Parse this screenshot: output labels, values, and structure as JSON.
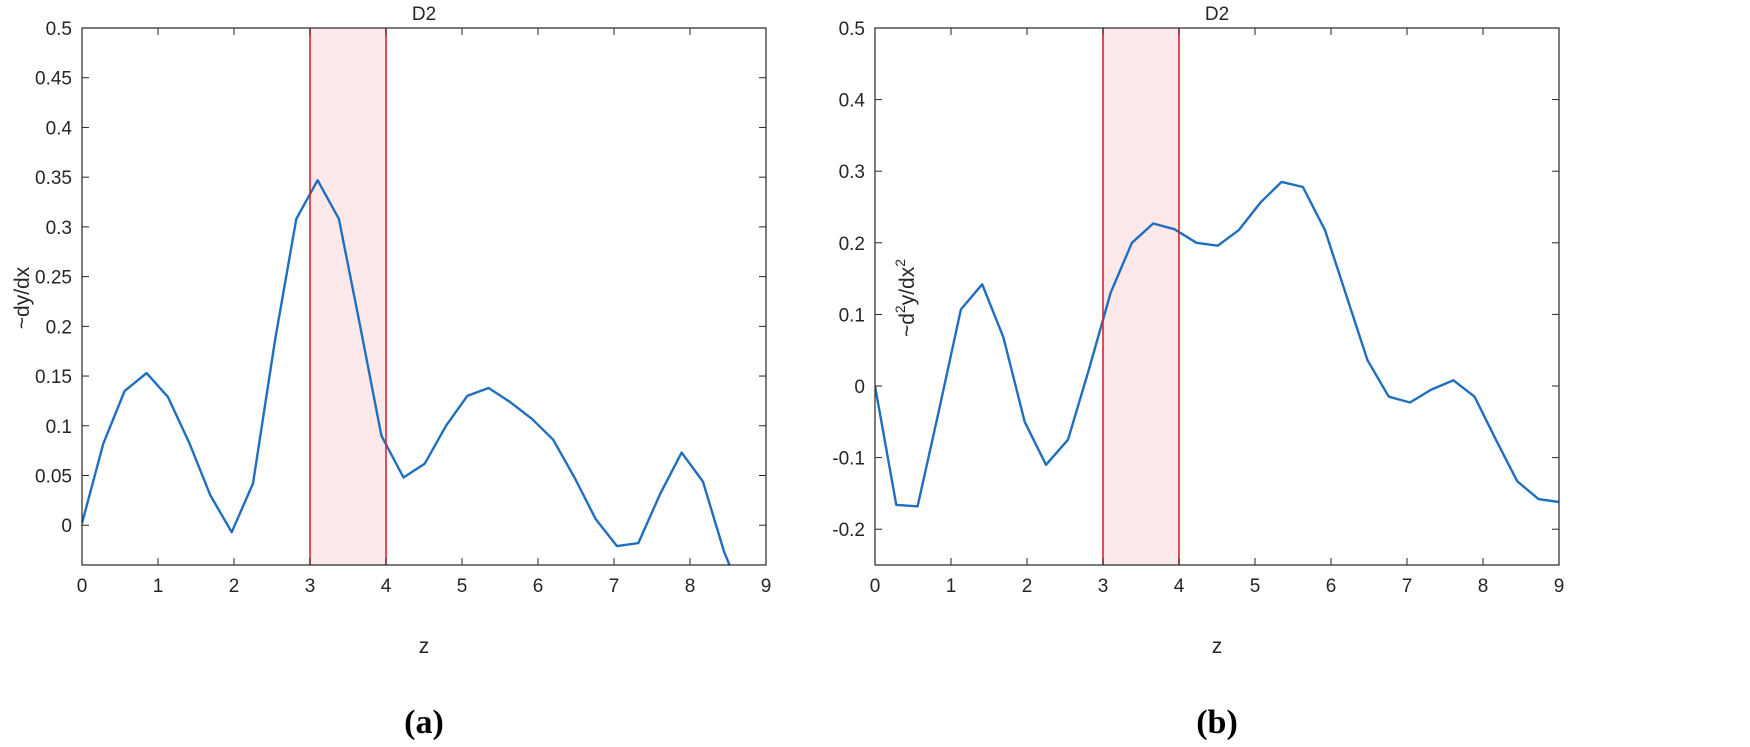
{
  "chart_data": [
    {
      "type": "line",
      "title": "D2",
      "xlabel": "z",
      "ylabel": "~dy/dx",
      "caption": "(a)",
      "xlim": [
        0,
        9
      ],
      "ylim": [
        -0.04,
        0.5
      ],
      "xticks": [
        "0",
        "1",
        "2",
        "3",
        "4",
        "5",
        "6",
        "7",
        "8",
        "9"
      ],
      "yticks": [
        "0",
        "0.05",
        "0.1",
        "0.15",
        "0.2",
        "0.25",
        "0.3",
        "0.35",
        "0.4",
        "0.45",
        "0.5"
      ],
      "highlight": {
        "x_from": 3,
        "x_to": 4,
        "fill": "#fde8ea",
        "edge": "#d7262f"
      },
      "series": [
        {
          "color": "#1f6fbf",
          "x": [
            0,
            0.28,
            0.56,
            0.85,
            1.13,
            1.41,
            1.69,
            1.97,
            2.25,
            2.54,
            2.82,
            3.1,
            3.38,
            3.66,
            3.94,
            4.23,
            4.51,
            4.79,
            5.07,
            5.35,
            5.63,
            5.92,
            6.2,
            6.48,
            6.76,
            7.04,
            7.32,
            7.61,
            7.89,
            8.17,
            8.45,
            8.52
          ],
          "y": [
            0.002,
            0.082,
            0.135,
            0.153,
            0.129,
            0.083,
            0.03,
            -0.007,
            0.042,
            0.186,
            0.308,
            0.347,
            0.308,
            0.2,
            0.09,
            0.048,
            0.062,
            0.1,
            0.13,
            0.138,
            0.124,
            0.107,
            0.086,
            0.048,
            0.006,
            -0.021,
            -0.018,
            0.032,
            0.073,
            0.044,
            -0.027,
            -0.04
          ]
        }
      ]
    },
    {
      "type": "line",
      "title": "D2",
      "xlabel": "z",
      "ylabel_parts": [
        "~d",
        "2",
        "y/dx",
        "2"
      ],
      "caption": "(b)",
      "xlim": [
        0,
        9
      ],
      "ylim": [
        -0.25,
        0.5
      ],
      "xticks": [
        "0",
        "1",
        "2",
        "3",
        "4",
        "5",
        "6",
        "7",
        "8",
        "9"
      ],
      "yticks": [
        "-0.2",
        "-0.1",
        "0",
        "0.1",
        "0.2",
        "0.3",
        "0.4",
        "0.5"
      ],
      "highlight": {
        "x_from": 3,
        "x_to": 4,
        "fill": "#fde8ea",
        "edge": "#d7262f"
      },
      "series": [
        {
          "color": "#1f6fbf",
          "x": [
            0,
            0.28,
            0.56,
            0.85,
            1.13,
            1.41,
            1.69,
            1.97,
            2.25,
            2.54,
            2.82,
            3.1,
            3.38,
            3.66,
            3.94,
            4.23,
            4.51,
            4.79,
            5.07,
            5.35,
            5.63,
            5.92,
            6.2,
            6.48,
            6.76,
            7.04,
            7.32,
            7.61,
            7.89,
            8.17,
            8.45,
            8.73,
            9.0
          ],
          "y": [
            0.0,
            -0.166,
            -0.168,
            -0.03,
            0.107,
            0.142,
            0.068,
            -0.05,
            -0.11,
            -0.075,
            0.025,
            0.13,
            0.2,
            0.227,
            0.219,
            0.2,
            0.196,
            0.218,
            0.256,
            0.285,
            0.278,
            0.218,
            0.127,
            0.036,
            -0.015,
            -0.023,
            -0.005,
            0.008,
            -0.015,
            -0.075,
            -0.133,
            -0.158,
            -0.162
          ]
        }
      ]
    }
  ]
}
